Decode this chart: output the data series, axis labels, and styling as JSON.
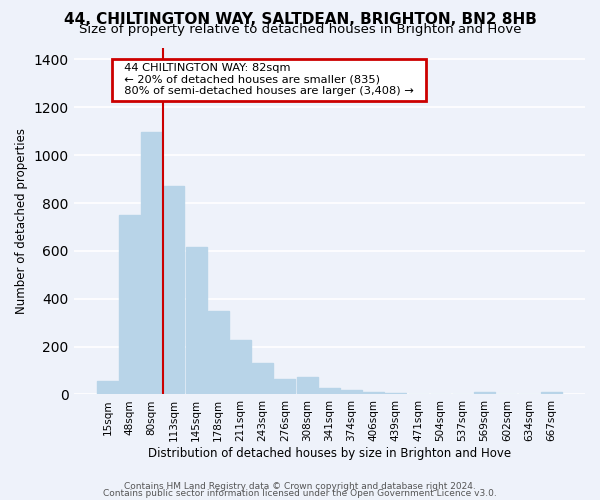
{
  "title": "44, CHILTINGTON WAY, SALTDEAN, BRIGHTON, BN2 8HB",
  "subtitle": "Size of property relative to detached houses in Brighton and Hove",
  "xlabel": "Distribution of detached houses by size in Brighton and Hove",
  "ylabel": "Number of detached properties",
  "bar_labels": [
    "15sqm",
    "48sqm",
    "80sqm",
    "113sqm",
    "145sqm",
    "178sqm",
    "211sqm",
    "243sqm",
    "276sqm",
    "308sqm",
    "341sqm",
    "374sqm",
    "406sqm",
    "439sqm",
    "471sqm",
    "504sqm",
    "537sqm",
    "569sqm",
    "602sqm",
    "634sqm",
    "667sqm"
  ],
  "bar_values": [
    55,
    750,
    1095,
    870,
    615,
    348,
    228,
    133,
    65,
    72,
    25,
    18,
    10,
    5,
    2,
    0,
    0,
    12,
    0,
    0,
    12
  ],
  "bar_color": "#b8d4e8",
  "vline_x_index": 2,
  "vline_color": "#cc0000",
  "annotation_title": "44 CHILTINGTON WAY: 82sqm",
  "annotation_line1": "← 20% of detached houses are smaller (835)",
  "annotation_line2": "80% of semi-detached houses are larger (3,408) →",
  "annotation_box_color": "#ffffff",
  "annotation_box_edge_color": "#cc0000",
  "ylim": [
    0,
    1450
  ],
  "yticks": [
    0,
    200,
    400,
    600,
    800,
    1000,
    1200,
    1400
  ],
  "footer1": "Contains HM Land Registry data © Crown copyright and database right 2024.",
  "footer2": "Contains public sector information licensed under the Open Government Licence v3.0.",
  "bg_color": "#eef2fa",
  "title_fontsize": 11,
  "subtitle_fontsize": 9.5
}
